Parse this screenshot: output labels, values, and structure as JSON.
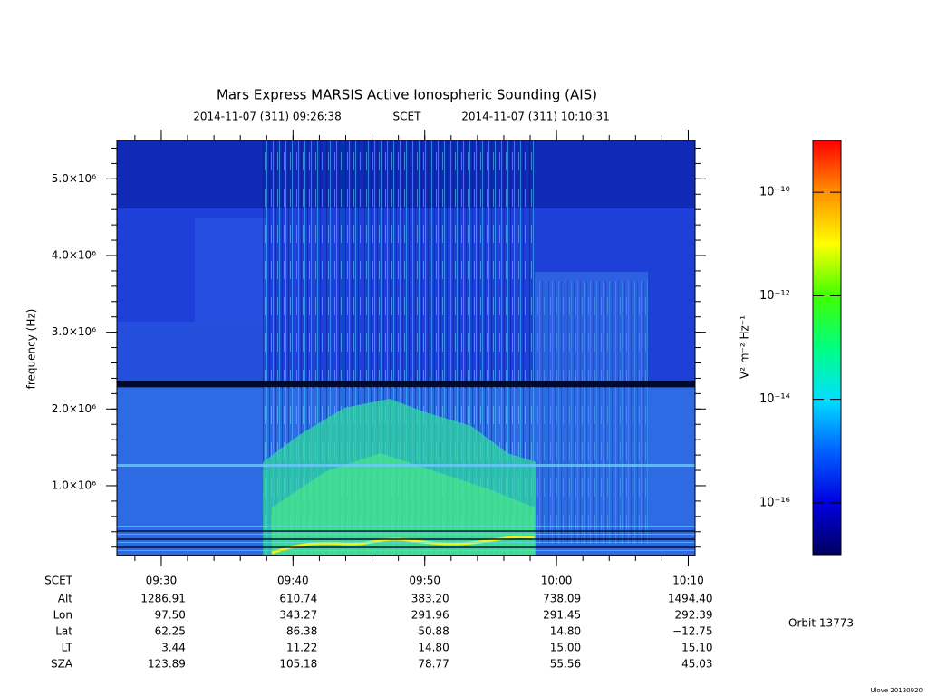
{
  "chart_data": {
    "type": "spectrogram",
    "title": "Mars Express MARSIS Active Ionospheric Sounding (AIS)",
    "time_start": "2014-11-07 (311) 09:26:38",
    "time_label": "SCET",
    "time_end": "2014-11-07 (311) 10:10:31",
    "y_label": "frequency (Hz)",
    "ylim": [
      90000,
      5500000
    ],
    "yticks": [
      {
        "value": 1000000,
        "label": "1.0×10⁶"
      },
      {
        "value": 2000000,
        "label": "2.0×10⁶"
      },
      {
        "value": 3000000,
        "label": "3.0×10⁶"
      },
      {
        "value": 4000000,
        "label": "4.0×10⁶"
      },
      {
        "value": 5000000,
        "label": "5.0×10⁶"
      }
    ],
    "xlim": [
      566.633,
      610.517
    ],
    "xticks": [
      {
        "value": 570,
        "label": "09:30"
      },
      {
        "value": 580,
        "label": "09:40"
      },
      {
        "value": 590,
        "label": "09:50"
      },
      {
        "value": 600,
        "label": "10:00"
      },
      {
        "value": 610,
        "label": "10:10"
      }
    ],
    "ephemeris": {
      "header": "SCET",
      "rows": [
        {
          "name": "Alt",
          "values": [
            "1286.91",
            "610.74",
            "383.20",
            "738.09",
            "1494.40"
          ]
        },
        {
          "name": "Lon",
          "values": [
            "97.50",
            "343.27",
            "291.96",
            "291.45",
            "292.39"
          ]
        },
        {
          "name": "Lat",
          "values": [
            "62.25",
            "86.38",
            "50.88",
            "14.80",
            "−12.75"
          ]
        },
        {
          "name": "LT",
          "values": [
            "3.44",
            "11.22",
            "14.80",
            "15.00",
            "15.10"
          ]
        },
        {
          "name": "SZA",
          "values": [
            "123.89",
            "105.18",
            "78.77",
            "55.56",
            "45.03"
          ]
        }
      ]
    },
    "colorbar": {
      "label": "V² m⁻² Hz⁻¹",
      "log": true,
      "lim": [
        1e-17,
        1e-09
      ],
      "ticks": [
        {
          "value": 1e-10,
          "label": "10⁻¹⁰"
        },
        {
          "value": 1e-12,
          "label": "10⁻¹²"
        },
        {
          "value": 1e-14,
          "label": "10⁻¹⁴"
        },
        {
          "value": 1e-16,
          "label": "10⁻¹⁶"
        }
      ],
      "colors": [
        "#000060",
        "#0000e0",
        "#0060ff",
        "#00e0ff",
        "#00ff80",
        "#40ff00",
        "#ffff00",
        "#ff9000",
        "#ff0000"
      ]
    },
    "orbit": "Orbit 13773",
    "version": "Ulove 20130920"
  }
}
